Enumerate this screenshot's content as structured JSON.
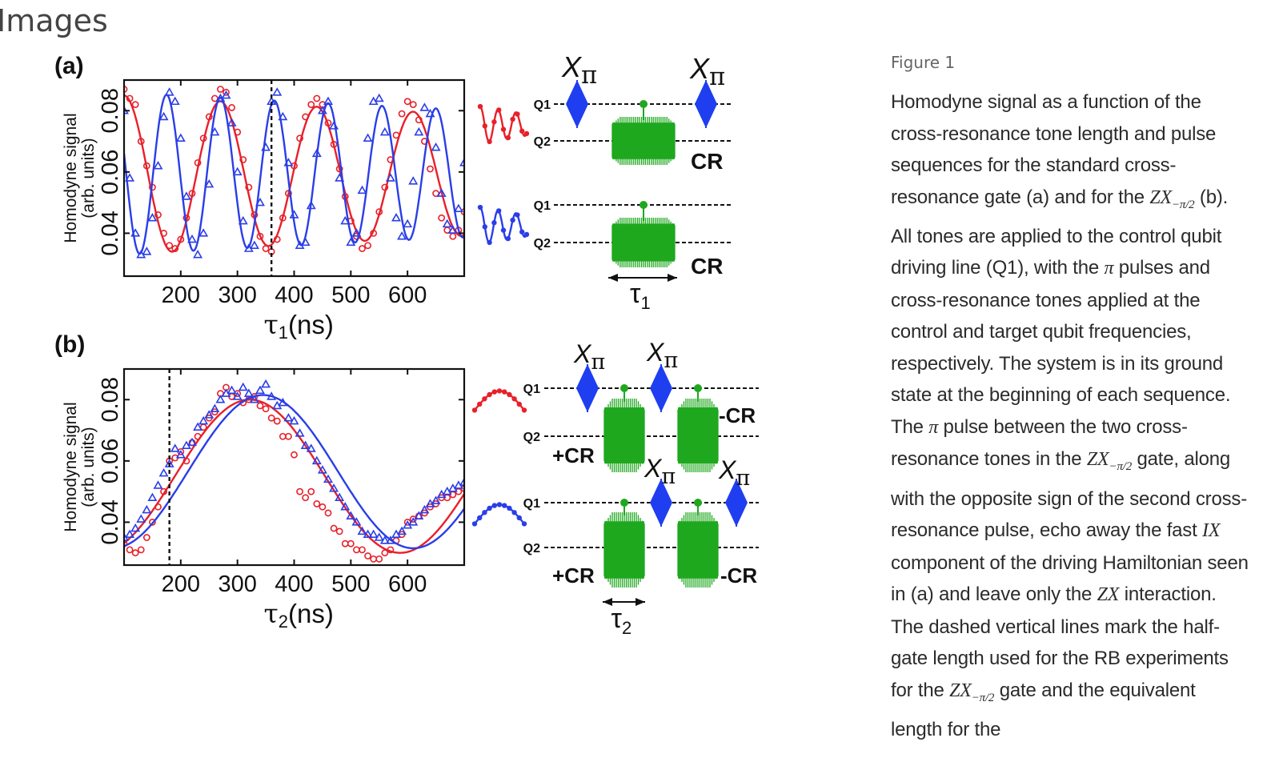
{
  "page": {
    "heading": "Images"
  },
  "figure": {
    "label": "Figure 1",
    "caption": [
      {
        "t": "Homodyne signal as a function of the cross-resonance tone length and pulse sequences for the standard cross-resonance gate (a) and for the "
      },
      {
        "m": "ZX",
        "s": "−π/2"
      },
      {
        "t": " (b). All tones are applied to the control qubit driving line (Q1), with the "
      },
      {
        "m": "π"
      },
      {
        "t": " pulses and cross-resonance tones applied at the control and target qubit frequencies, respectively. The system is in its ground state at the beginning of each sequence. The "
      },
      {
        "m": "π"
      },
      {
        "t": " pulse between the two cross-resonance tones in the "
      },
      {
        "m": "ZX",
        "s": "−π/2"
      },
      {
        "t": " gate, along with the opposite sign of the second cross-resonance pulse, echo away the fast "
      },
      {
        "m": "IX"
      },
      {
        "t": " component of the driving Hamiltonian seen in (a) and leave only the "
      },
      {
        "m": "ZX"
      },
      {
        "t": " interaction. The dashed vertical lines mark the half-gate length used for the RB experiments for the "
      },
      {
        "m": "ZX",
        "s": "−π/2"
      },
      {
        "t": " gate and the equivalent length for the"
      }
    ]
  },
  "colors": {
    "red": "#e8202a",
    "blue": "#2a3ee8",
    "green": "#1fa81f",
    "diamond": "#1f3ef0"
  },
  "labels": {
    "panel_a": "(a)",
    "panel_b": "(b)",
    "ylabel_line1": "Homodyne signal",
    "ylabel_line2": "(arb. units)",
    "xlabel_a_main": "τ",
    "xlabel_a_sub": "1",
    "xlabel_a_unit": "(ns)",
    "xlabel_b_main": "τ",
    "xlabel_b_sub": "2",
    "xlabel_b_unit": "(ns)",
    "q1": "Q1",
    "q2": "Q2",
    "cr": "CR",
    "plus_cr": "+CR",
    "minus_cr": "-CR",
    "x_pi_main": "X",
    "x_pi_sub": "π",
    "tau1_main": "τ",
    "tau1_sub": "1",
    "tau2_main": "τ",
    "tau2_sub": "2"
  },
  "chart_data": [
    {
      "type": "scatter",
      "panel": "(a)",
      "xlabel": "τ1(ns)",
      "ylabel": "Homodyne signal (arb. units)",
      "xlim": [
        100,
        700
      ],
      "ylim": [
        0.026,
        0.09
      ],
      "xticks": [
        200,
        300,
        400,
        500,
        600
      ],
      "yticks": [
        0.04,
        0.06,
        0.08
      ],
      "vline": 360,
      "series": [
        {
          "marker": "circle",
          "color": "red",
          "fit": {
            "offset": 0.059,
            "amp": 0.026,
            "period": 170,
            "peak": 100,
            "decay": 0.00045
          },
          "x": [
            100,
            110,
            120,
            130,
            140,
            150,
            160,
            170,
            180,
            190,
            200,
            210,
            220,
            230,
            240,
            250,
            260,
            270,
            280,
            290,
            300,
            310,
            320,
            330,
            340,
            350,
            360,
            370,
            380,
            390,
            400,
            410,
            420,
            430,
            440,
            450,
            460,
            470,
            480,
            490,
            500,
            510,
            520,
            530,
            540,
            550,
            560,
            570,
            580,
            590,
            600,
            610,
            620,
            630,
            640,
            650,
            660,
            670,
            680,
            690,
            700
          ],
          "y": [
            0.087,
            0.084,
            0.082,
            0.07,
            0.062,
            0.055,
            0.046,
            0.04,
            0.036,
            0.035,
            0.038,
            0.045,
            0.053,
            0.063,
            0.071,
            0.078,
            0.084,
            0.087,
            0.086,
            0.081,
            0.073,
            0.064,
            0.055,
            0.046,
            0.039,
            0.035,
            0.034,
            0.038,
            0.045,
            0.053,
            0.062,
            0.071,
            0.078,
            0.082,
            0.084,
            0.082,
            0.076,
            0.069,
            0.061,
            0.052,
            0.044,
            0.039,
            0.035,
            0.036,
            0.04,
            0.047,
            0.055,
            0.064,
            0.072,
            0.079,
            0.083,
            0.082,
            0.077,
            0.07,
            0.061,
            0.053,
            0.045,
            0.041,
            0.039,
            0.041,
            0.047
          ]
        },
        {
          "marker": "triangle",
          "color": "blue",
          "fit": {
            "offset": 0.0595,
            "amp": 0.0265,
            "period": 95,
            "peak": 175,
            "decay": 0.0004
          },
          "x": [
            100,
            110,
            120,
            130,
            140,
            150,
            160,
            170,
            180,
            190,
            200,
            210,
            220,
            230,
            240,
            250,
            260,
            270,
            280,
            290,
            300,
            310,
            320,
            330,
            340,
            350,
            360,
            370,
            380,
            390,
            400,
            410,
            420,
            430,
            440,
            450,
            460,
            470,
            480,
            490,
            500,
            510,
            520,
            530,
            540,
            550,
            560,
            570,
            580,
            590,
            600,
            610,
            620,
            630,
            640,
            650,
            660,
            670,
            680,
            690,
            700
          ],
          "y": [
            0.08,
            0.058,
            0.04,
            0.033,
            0.034,
            0.045,
            0.062,
            0.078,
            0.086,
            0.083,
            0.071,
            0.052,
            0.038,
            0.033,
            0.04,
            0.056,
            0.073,
            0.084,
            0.085,
            0.076,
            0.06,
            0.044,
            0.035,
            0.036,
            0.05,
            0.068,
            0.083,
            0.086,
            0.078,
            0.063,
            0.046,
            0.036,
            0.037,
            0.049,
            0.066,
            0.08,
            0.083,
            0.075,
            0.058,
            0.044,
            0.037,
            0.04,
            0.054,
            0.071,
            0.083,
            0.084,
            0.073,
            0.058,
            0.045,
            0.039,
            0.043,
            0.057,
            0.073,
            0.081,
            0.079,
            0.068,
            0.053,
            0.043,
            0.041,
            0.048,
            0.063
          ]
        }
      ]
    },
    {
      "type": "scatter",
      "panel": "(b)",
      "xlabel": "τ2(ns)",
      "ylabel": "Homodyne signal (arb. units)",
      "xlim": [
        100,
        700
      ],
      "ylim": [
        0.026,
        0.09
      ],
      "xticks": [
        200,
        300,
        400,
        500,
        600
      ],
      "yticks": [
        0.04,
        0.06,
        0.08
      ],
      "vline": 180,
      "series": [
        {
          "marker": "circle",
          "color": "red",
          "fit": {
            "offset": 0.055,
            "amp": 0.025,
            "period": 530,
            "peak": 322
          },
          "x": [
            100,
            110,
            120,
            130,
            140,
            150,
            160,
            170,
            180,
            190,
            200,
            210,
            220,
            230,
            240,
            250,
            260,
            270,
            280,
            290,
            300,
            310,
            320,
            330,
            340,
            350,
            360,
            370,
            380,
            390,
            400,
            410,
            420,
            430,
            440,
            450,
            460,
            470,
            480,
            490,
            500,
            510,
            520,
            530,
            540,
            550,
            560,
            570,
            580,
            590,
            600,
            610,
            620,
            630,
            640,
            650,
            660,
            670,
            680,
            690,
            700
          ],
          "y": [
            0.033,
            0.031,
            0.03,
            0.031,
            0.035,
            0.04,
            0.045,
            0.05,
            0.06,
            0.061,
            0.063,
            0.06,
            0.066,
            0.068,
            0.071,
            0.074,
            0.076,
            0.082,
            0.084,
            0.081,
            0.082,
            0.079,
            0.08,
            0.081,
            0.078,
            0.077,
            0.074,
            0.073,
            0.068,
            0.068,
            0.062,
            0.05,
            0.048,
            0.05,
            0.046,
            0.045,
            0.043,
            0.038,
            0.037,
            0.033,
            0.033,
            0.031,
            0.031,
            0.029,
            0.028,
            0.028,
            0.03,
            0.031,
            0.034,
            0.036,
            0.04,
            0.041,
            0.042,
            0.043,
            0.045,
            0.046,
            0.048,
            0.048,
            0.049,
            0.05,
            0.051
          ]
        },
        {
          "marker": "triangle",
          "color": "blue",
          "fit": {
            "offset": 0.0565,
            "amp": 0.025,
            "period": 530,
            "peak": 345
          },
          "x": [
            100,
            110,
            120,
            130,
            140,
            150,
            160,
            170,
            180,
            190,
            200,
            210,
            220,
            230,
            240,
            250,
            260,
            270,
            280,
            290,
            300,
            310,
            320,
            330,
            340,
            350,
            360,
            370,
            380,
            390,
            400,
            410,
            420,
            430,
            440,
            450,
            460,
            470,
            480,
            490,
            500,
            510,
            520,
            530,
            540,
            550,
            560,
            570,
            580,
            590,
            600,
            610,
            620,
            630,
            640,
            650,
            660,
            670,
            680,
            690,
            700
          ],
          "y": [
            0.035,
            0.036,
            0.038,
            0.041,
            0.044,
            0.048,
            0.052,
            0.056,
            0.059,
            0.064,
            0.062,
            0.065,
            0.066,
            0.071,
            0.073,
            0.075,
            0.077,
            0.08,
            0.082,
            0.083,
            0.081,
            0.084,
            0.082,
            0.08,
            0.083,
            0.085,
            0.081,
            0.078,
            0.079,
            0.074,
            0.073,
            0.069,
            0.065,
            0.064,
            0.06,
            0.057,
            0.054,
            0.051,
            0.048,
            0.045,
            0.042,
            0.04,
            0.037,
            0.036,
            0.036,
            0.035,
            0.034,
            0.034,
            0.036,
            0.037,
            0.039,
            0.04,
            0.042,
            0.044,
            0.046,
            0.047,
            0.049,
            0.05,
            0.051,
            0.052,
            0.053
          ]
        }
      ]
    }
  ]
}
